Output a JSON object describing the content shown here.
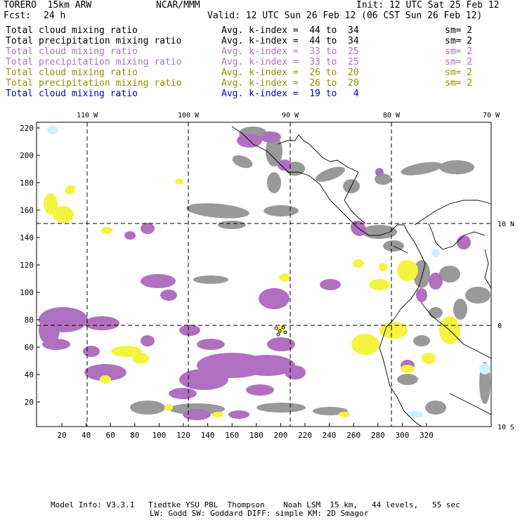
{
  "header": {
    "model": "TORERO  15km ARW",
    "org": "NCAR/MMM",
    "init": "Init: 12 UTC Sat 25 Feb 12",
    "fcst_label": "Fcst:",
    "fcst_value": "24 h",
    "valid": "Valid: 12 UTC Sun 26 Feb 12 (06 CST Sun 26 Feb 12)"
  },
  "fields": [
    {
      "name": "Total cloud mixing ratio",
      "kidx": "Avg. k-index =  44 to  34",
      "sm": "sm= 2",
      "color": "#000000"
    },
    {
      "name": "Total precipitation mixing ratio",
      "kidx": "Avg. k-index =  44 to  34",
      "sm": "sm= 2",
      "color": "#000000"
    },
    {
      "name": "Total cloud mixing ratio",
      "kidx": "Avg. k-index =  33 to  25",
      "sm": "sm= 2",
      "color": "#b070c0"
    },
    {
      "name": "Total precipitation mixing ratio",
      "kidx": "Avg. k-index =  33 to  25",
      "sm": "sm= 2",
      "color": "#b070c0"
    },
    {
      "name": "Total cloud mixing ratio",
      "kidx": "Avg. k-index =  26 to  20",
      "sm": "sm= 2",
      "color": "#909000"
    },
    {
      "name": "Total precipitation mixing ratio",
      "kidx": "Avg. k-index =  26 to  20",
      "sm": "sm= 2",
      "color": "#909000"
    },
    {
      "name": "Total cloud mixing ratio",
      "kidx": "Avg. k-index =  19 to   4",
      "sm": "",
      "color": "#0000c0"
    }
  ],
  "map": {
    "lon_labels": [
      "110 W",
      "100 W",
      "90 W",
      "80 W",
      "70 W"
    ],
    "lat_labels": [
      "10 N",
      "0",
      "10 S"
    ],
    "y_ticks": [
      "20",
      "40",
      "60",
      "80",
      "100",
      "120",
      "140",
      "160",
      "180",
      "200",
      "220"
    ],
    "x_ticks": [
      "20",
      "40",
      "60",
      "80",
      "100",
      "120",
      "140",
      "160",
      "180",
      "200",
      "220",
      "240",
      "260",
      "280",
      "300",
      "320"
    ],
    "colors": {
      "gray": "#999999",
      "purple": "#b070c0",
      "yellow": "#f4f440",
      "cyan": "#cfefff"
    }
  },
  "footer": {
    "line1": "Model Info: V3.3.1   Tiedtke YSU PBL  Thompson    Noah LSM  15 km,   44 levels,   55 sec",
    "line2": "LW: Godd SW: Goddard DIFF: simple KM: 2D Smagor"
  }
}
